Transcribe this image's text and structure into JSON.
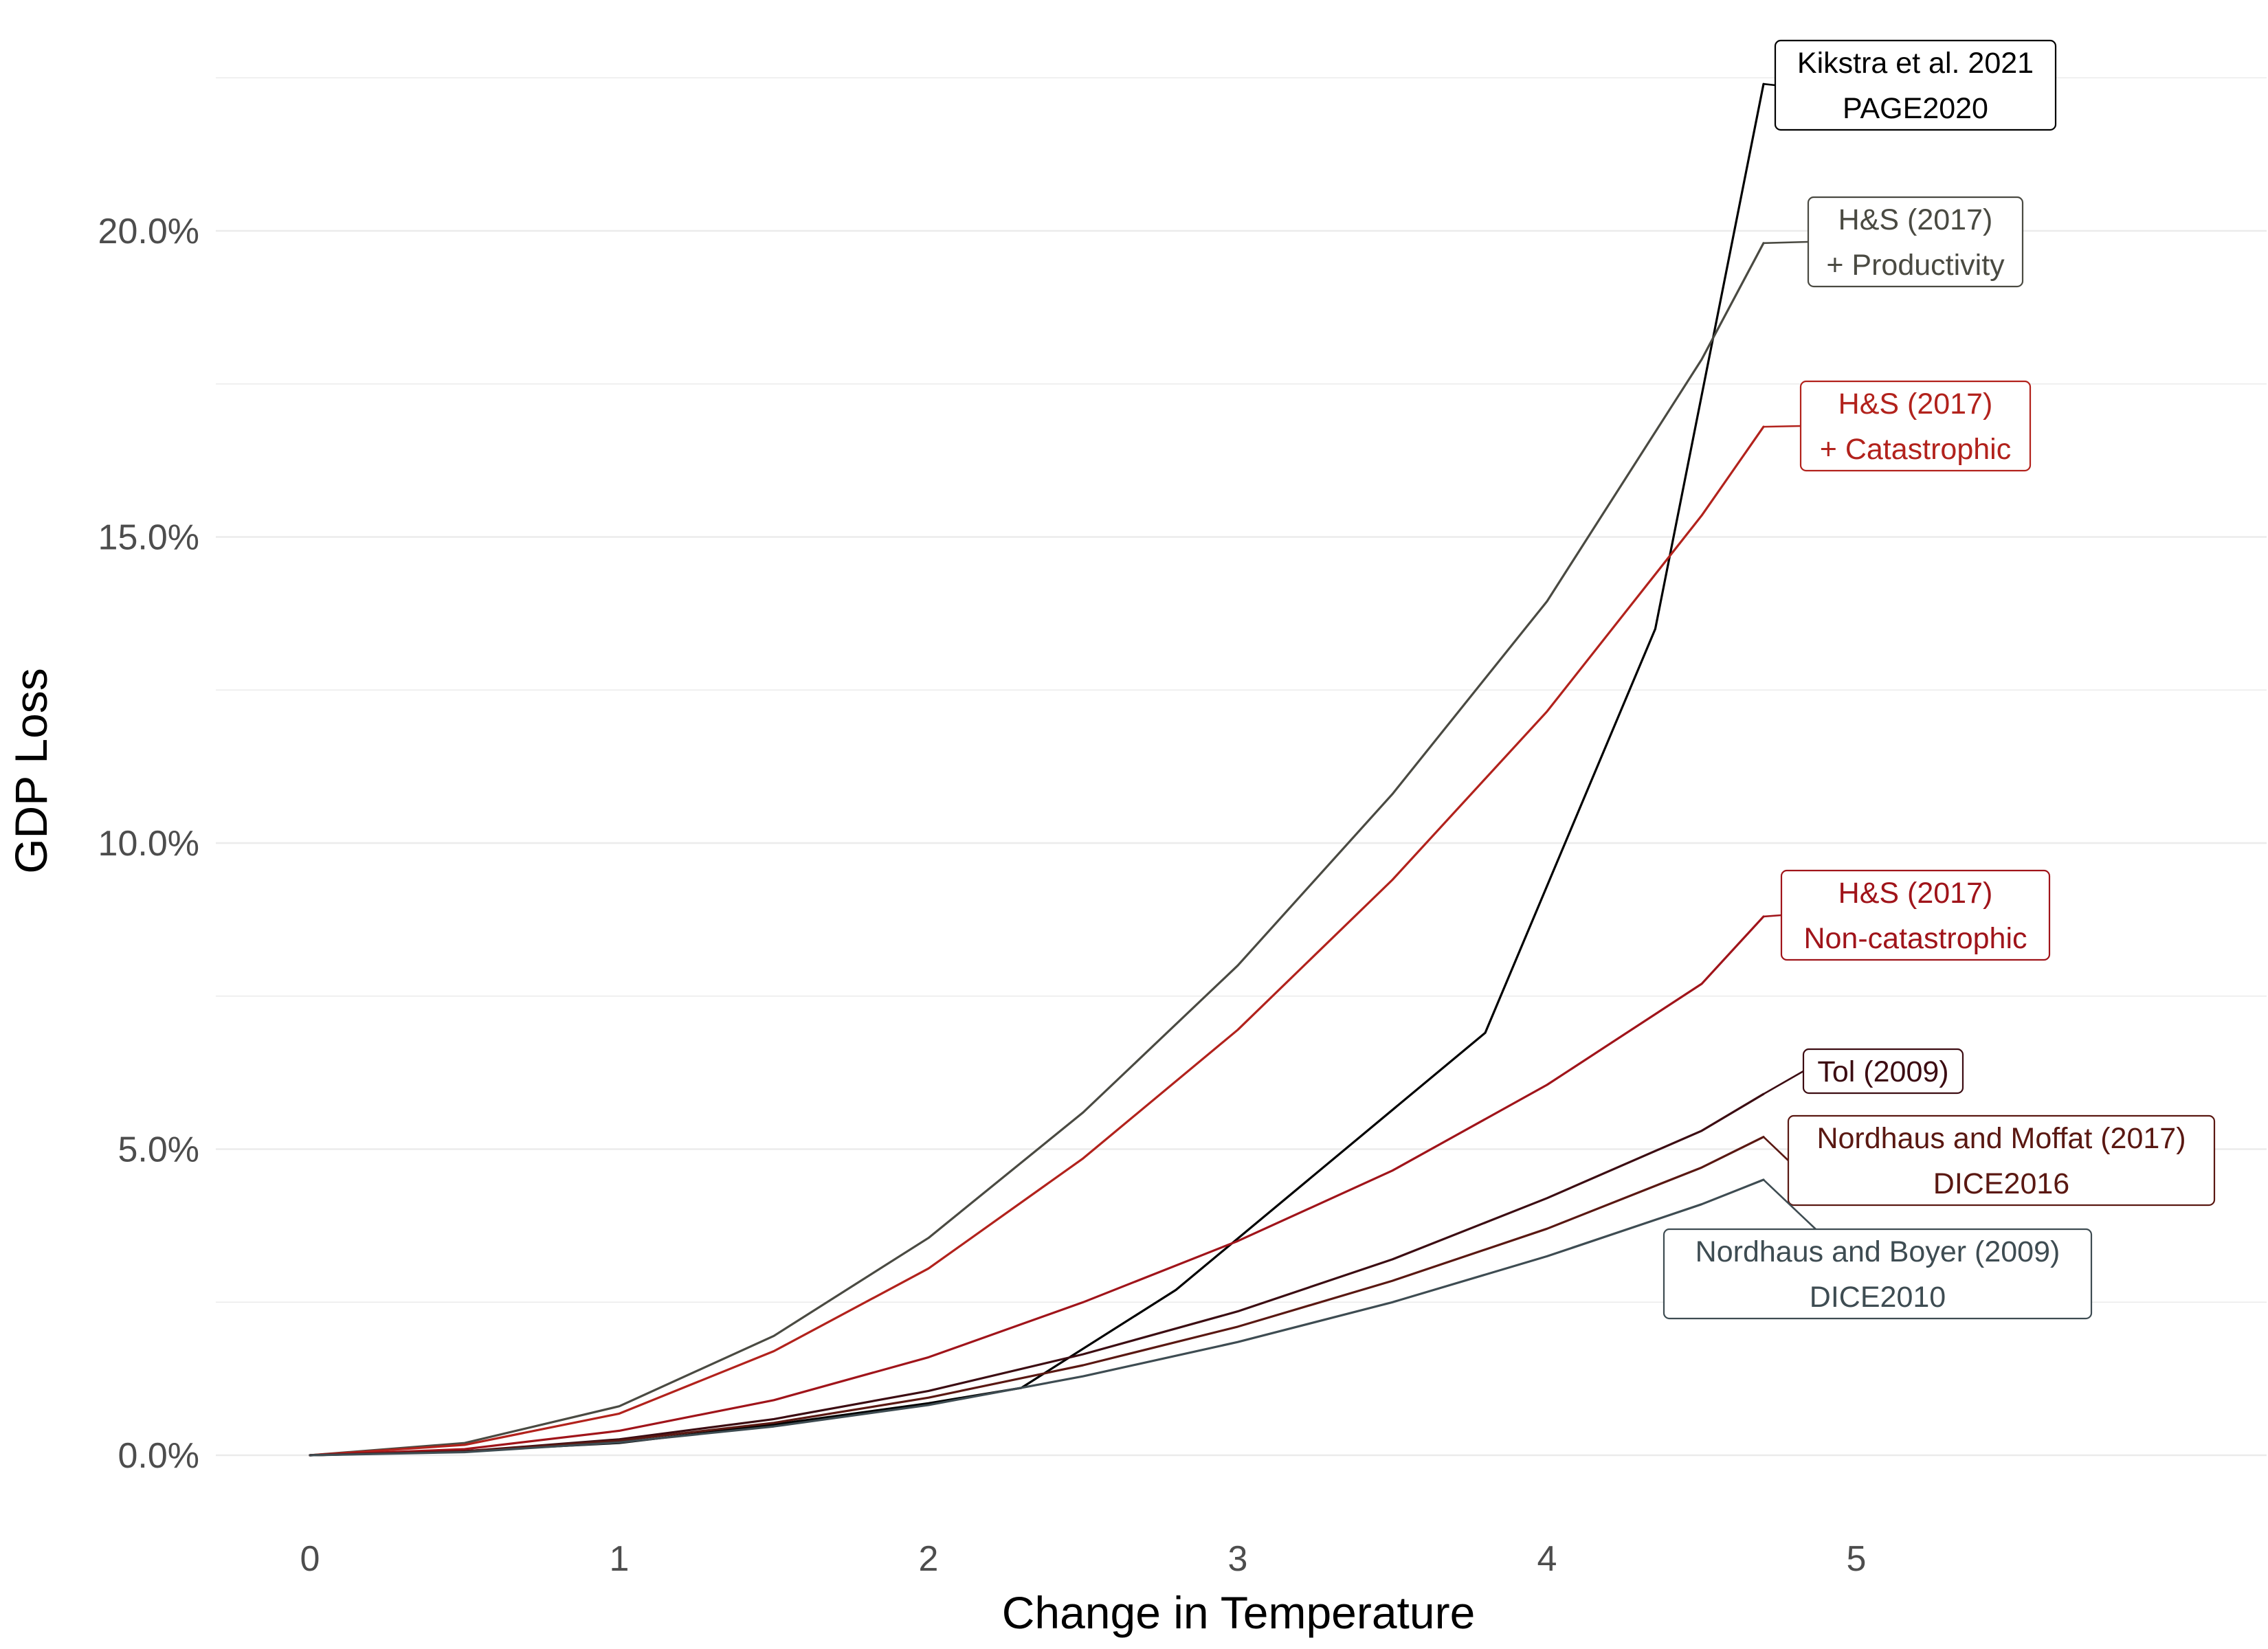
{
  "chart_data": {
    "type": "line",
    "title": "",
    "xlabel": "Change in Temperature",
    "ylabel": "GDP Loss",
    "xlim": [
      -0.25,
      6.45
    ],
    "ylim": [
      -1.0,
      22.7
    ],
    "x_ticks": [
      0,
      1,
      2,
      3,
      4,
      5
    ],
    "x_tick_labels": [
      "0",
      "1",
      "2",
      "3",
      "4",
      "5"
    ],
    "y_ticks": [
      0,
      5,
      10,
      15,
      20
    ],
    "y_tick_labels": [
      "0.0%",
      "5.0%",
      "10.0%",
      "15.0%",
      "20.0%"
    ],
    "y_minor_ticks": [
      2.5,
      7.5,
      12.5,
      17.5,
      22.5
    ],
    "grid": true,
    "legend": "none (direct labels)",
    "series": [
      {
        "label_lines": [
          "Kikstra et al. 2021",
          "PAGE2020"
        ],
        "color": "#000000",
        "x": [
          0,
          0.5,
          1.0,
          1.5,
          2.0,
          2.3,
          2.8,
          3.8,
          4.35,
          4.7
        ],
        "y": [
          0,
          0.07,
          0.2,
          0.5,
          0.85,
          1.1,
          2.7,
          6.9,
          13.5,
          22.4
        ]
      },
      {
        "label_lines": [
          "H&S  (2017)",
          "+ Productivity"
        ],
        "color": "#4a4a42",
        "x": [
          0,
          0.5,
          1.0,
          1.5,
          2.0,
          2.5,
          3.0,
          3.5,
          4.0,
          4.5,
          4.7
        ],
        "y": [
          0,
          0.2,
          0.8,
          1.95,
          3.55,
          5.6,
          8.0,
          10.8,
          13.95,
          17.9,
          19.8
        ]
      },
      {
        "label_lines": [
          "H&S  (2017)",
          "+ Catastrophic"
        ],
        "color": "#b2221c",
        "x": [
          0,
          0.5,
          1.0,
          1.5,
          2.0,
          2.5,
          3.0,
          3.5,
          4.0,
          4.5,
          4.7
        ],
        "y": [
          0,
          0.17,
          0.68,
          1.7,
          3.05,
          4.85,
          6.95,
          9.4,
          12.15,
          15.35,
          16.8
        ]
      },
      {
        "label_lines": [
          "H&S (2017)",
          "Non-catastrophic"
        ],
        "color": "#a0141a",
        "x": [
          0,
          0.5,
          1.0,
          1.5,
          2.0,
          2.5,
          3.0,
          3.5,
          4.0,
          4.5,
          4.7
        ],
        "y": [
          0,
          0.1,
          0.4,
          0.9,
          1.6,
          2.5,
          3.5,
          4.65,
          6.05,
          7.7,
          8.8
        ]
      },
      {
        "label_lines": [
          "Tol (2009)"
        ],
        "color": "#3c0c12",
        "x": [
          0,
          0.5,
          1.0,
          1.5,
          2.0,
          2.5,
          3.0,
          3.5,
          4.0,
          4.5,
          4.7
        ],
        "y": [
          0,
          0.065,
          0.26,
          0.59,
          1.05,
          1.65,
          2.35,
          3.2,
          4.2,
          5.3,
          5.9
        ]
      },
      {
        "label_lines": [
          "Nordhaus and Moffat (2017)",
          "DICE2016"
        ],
        "color": "#5a1812",
        "x": [
          0,
          0.5,
          1.0,
          1.5,
          2.0,
          2.5,
          3.0,
          3.5,
          4.0,
          4.5,
          4.7
        ],
        "y": [
          0,
          0.06,
          0.24,
          0.53,
          0.94,
          1.47,
          2.1,
          2.85,
          3.7,
          4.7,
          5.2
        ]
      },
      {
        "label_lines": [
          "Nordhaus and Boyer (2009)",
          "DICE2010"
        ],
        "color": "#3e4c52",
        "x": [
          0,
          0.5,
          1.0,
          1.5,
          2.0,
          2.5,
          3.0,
          3.5,
          4.0,
          4.5,
          4.7
        ],
        "y": [
          0,
          0.05,
          0.21,
          0.47,
          0.82,
          1.29,
          1.85,
          2.5,
          3.25,
          4.1,
          4.5
        ]
      }
    ]
  }
}
